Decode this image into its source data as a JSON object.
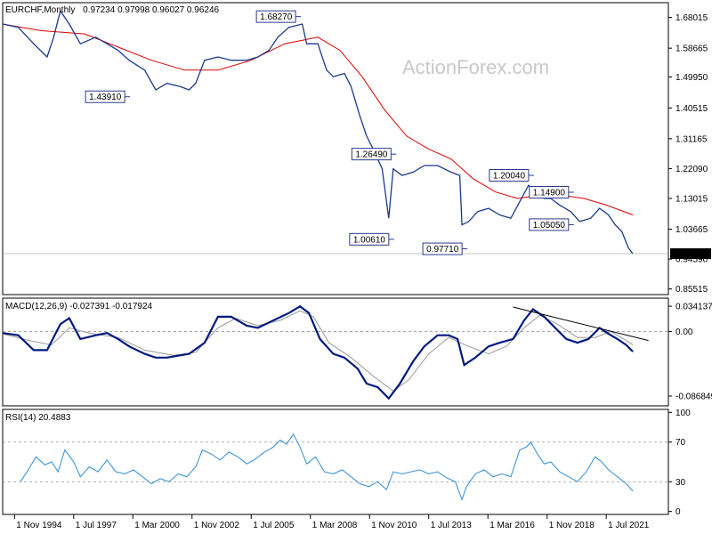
{
  "chart_data": {
    "type": "line",
    "title": "EURCHF,Monthly",
    "ohlc": "0.97234 0.97998 0.96027 0.96246",
    "watermark": "ActionForex.com",
    "colors": {
      "price": "#1a3a8a",
      "ma": "#dd0000",
      "macd": "#001a80",
      "signal": "#999999",
      "rsi": "#3f95d9",
      "label_border": "#2a3a8a",
      "current": "#000000"
    },
    "x_ticks": [
      "1 Nov 1994",
      "1 Jul 1997",
      "1 Mar 2000",
      "1 Nov 2002",
      "1 Jul 2005",
      "1 Mar 2008",
      "1 Nov 2010",
      "1 Jul 2013",
      "1 Mar 2016",
      "1 Nov 2018",
      "1 Jul 2021"
    ],
    "price_panel": {
      "y_ticks": [
        "1.68015",
        "1.58665",
        "1.49950",
        "1.40515",
        "1.31165",
        "1.22090",
        "1.13015",
        "1.03665",
        "0.94590",
        "0.85515"
      ],
      "ylim": [
        0.838,
        1.725
      ],
      "current": "0.96246",
      "price": [
        {
          "x": 1994.3,
          "y": 1.66
        },
        {
          "x": 1995.0,
          "y": 1.65
        },
        {
          "x": 1995.7,
          "y": 1.6
        },
        {
          "x": 1996.3,
          "y": 1.56
        },
        {
          "x": 1996.6,
          "y": 1.62
        },
        {
          "x": 1996.9,
          "y": 1.7
        },
        {
          "x": 1997.3,
          "y": 1.66
        },
        {
          "x": 1997.8,
          "y": 1.6
        },
        {
          "x": 1998.5,
          "y": 1.62
        },
        {
          "x": 1999.0,
          "y": 1.6
        },
        {
          "x": 1999.5,
          "y": 1.58
        },
        {
          "x": 2000.0,
          "y": 1.55
        },
        {
          "x": 2000.7,
          "y": 1.52
        },
        {
          "x": 2001.2,
          "y": 1.46
        },
        {
          "x": 2001.7,
          "y": 1.48
        },
        {
          "x": 2002.3,
          "y": 1.47
        },
        {
          "x": 2002.7,
          "y": 1.46
        },
        {
          "x": 2003.0,
          "y": 1.48
        },
        {
          "x": 2003.4,
          "y": 1.55
        },
        {
          "x": 2004.0,
          "y": 1.56
        },
        {
          "x": 2004.6,
          "y": 1.55
        },
        {
          "x": 2005.3,
          "y": 1.55
        },
        {
          "x": 2005.8,
          "y": 1.56
        },
        {
          "x": 2006.3,
          "y": 1.58
        },
        {
          "x": 2006.7,
          "y": 1.62
        },
        {
          "x": 2007.2,
          "y": 1.65
        },
        {
          "x": 2007.8,
          "y": 1.66
        },
        {
          "x": 2008.0,
          "y": 1.6
        },
        {
          "x": 2008.5,
          "y": 1.6
        },
        {
          "x": 2008.9,
          "y": 1.52
        },
        {
          "x": 2009.2,
          "y": 1.5
        },
        {
          "x": 2009.7,
          "y": 1.51
        },
        {
          "x": 2010.0,
          "y": 1.47
        },
        {
          "x": 2010.4,
          "y": 1.38
        },
        {
          "x": 2010.7,
          "y": 1.32
        },
        {
          "x": 2011.0,
          "y": 1.28
        },
        {
          "x": 2011.4,
          "y": 1.22
        },
        {
          "x": 2011.7,
          "y": 1.07
        },
        {
          "x": 2011.9,
          "y": 1.22
        },
        {
          "x": 2012.3,
          "y": 1.2
        },
        {
          "x": 2012.8,
          "y": 1.21
        },
        {
          "x": 2013.3,
          "y": 1.23
        },
        {
          "x": 2013.9,
          "y": 1.23
        },
        {
          "x": 2014.5,
          "y": 1.21
        },
        {
          "x": 2014.9,
          "y": 1.2
        },
        {
          "x": 2015.0,
          "y": 1.05
        },
        {
          "x": 2015.3,
          "y": 1.06
        },
        {
          "x": 2015.7,
          "y": 1.09
        },
        {
          "x": 2016.2,
          "y": 1.1
        },
        {
          "x": 2016.7,
          "y": 1.08
        },
        {
          "x": 2017.2,
          "y": 1.07
        },
        {
          "x": 2017.6,
          "y": 1.12
        },
        {
          "x": 2018.0,
          "y": 1.17
        },
        {
          "x": 2018.3,
          "y": 1.15
        },
        {
          "x": 2018.7,
          "y": 1.13
        },
        {
          "x": 2019.0,
          "y": 1.13
        },
        {
          "x": 2019.4,
          "y": 1.11
        },
        {
          "x": 2019.9,
          "y": 1.09
        },
        {
          "x": 2020.3,
          "y": 1.06
        },
        {
          "x": 2020.8,
          "y": 1.07
        },
        {
          "x": 2021.2,
          "y": 1.1
        },
        {
          "x": 2021.6,
          "y": 1.08
        },
        {
          "x": 2021.9,
          "y": 1.05
        },
        {
          "x": 2022.2,
          "y": 1.03
        },
        {
          "x": 2022.5,
          "y": 0.98
        },
        {
          "x": 2022.7,
          "y": 0.962
        }
      ],
      "ma": [
        {
          "x": 1994.3,
          "y": 1.66
        },
        {
          "x": 1996.0,
          "y": 1.64
        },
        {
          "x": 1998.0,
          "y": 1.63
        },
        {
          "x": 1999.5,
          "y": 1.59
        },
        {
          "x": 2001.0,
          "y": 1.55
        },
        {
          "x": 2002.5,
          "y": 1.52
        },
        {
          "x": 2004.0,
          "y": 1.52
        },
        {
          "x": 2005.5,
          "y": 1.55
        },
        {
          "x": 2007.0,
          "y": 1.6
        },
        {
          "x": 2008.5,
          "y": 1.62
        },
        {
          "x": 2009.5,
          "y": 1.58
        },
        {
          "x": 2010.5,
          "y": 1.5
        },
        {
          "x": 2011.5,
          "y": 1.4
        },
        {
          "x": 2012.5,
          "y": 1.32
        },
        {
          "x": 2013.5,
          "y": 1.28
        },
        {
          "x": 2014.5,
          "y": 1.25
        },
        {
          "x": 2015.5,
          "y": 1.19
        },
        {
          "x": 2016.5,
          "y": 1.15
        },
        {
          "x": 2017.5,
          "y": 1.13
        },
        {
          "x": 2018.5,
          "y": 1.14
        },
        {
          "x": 2019.5,
          "y": 1.14
        },
        {
          "x": 2020.5,
          "y": 1.13
        },
        {
          "x": 2021.5,
          "y": 1.11
        },
        {
          "x": 2022.7,
          "y": 1.08
        }
      ],
      "annotations": [
        {
          "text": "1.68270",
          "x": 2007.5,
          "y": 1.6827
        },
        {
          "text": "1.43910",
          "x": 1999.8,
          "y": 1.4391
        },
        {
          "text": "1.26490",
          "x": 2011.8,
          "y": 1.2649
        },
        {
          "text": "1.00610",
          "x": 2011.7,
          "y": 1.0061
        },
        {
          "text": "1.20040",
          "x": 2018.0,
          "y": 1.2004
        },
        {
          "text": "0.97710",
          "x": 2015.0,
          "y": 0.9771
        },
        {
          "text": "1.14900",
          "x": 2019.8,
          "y": 1.149
        },
        {
          "text": "1.05050",
          "x": 2019.8,
          "y": 1.0505
        }
      ]
    },
    "macd_panel": {
      "label": "MACD(12,26,9) -0.027391 -0.017924",
      "y_ticks": [
        "0.034137",
        "0.00",
        "-0.086849"
      ],
      "ylim": [
        -0.1,
        0.045
      ],
      "macd": [
        {
          "x": 1994.3,
          "y": -0.002
        },
        {
          "x": 1995.0,
          "y": -0.005
        },
        {
          "x": 1995.7,
          "y": -0.025
        },
        {
          "x": 1996.3,
          "y": -0.025
        },
        {
          "x": 1996.9,
          "y": 0.01
        },
        {
          "x": 1997.3,
          "y": 0.018
        },
        {
          "x": 1997.8,
          "y": -0.01
        },
        {
          "x": 1998.5,
          "y": -0.005
        },
        {
          "x": 1999.0,
          "y": -0.002
        },
        {
          "x": 1999.5,
          "y": -0.01
        },
        {
          "x": 2000.0,
          "y": -0.02
        },
        {
          "x": 2000.7,
          "y": -0.03
        },
        {
          "x": 2001.2,
          "y": -0.035
        },
        {
          "x": 2001.7,
          "y": -0.035
        },
        {
          "x": 2002.7,
          "y": -0.03
        },
        {
          "x": 2003.4,
          "y": -0.015
        },
        {
          "x": 2004.0,
          "y": 0.02
        },
        {
          "x": 2004.6,
          "y": 0.02
        },
        {
          "x": 2005.3,
          "y": 0.008
        },
        {
          "x": 2005.8,
          "y": 0.005
        },
        {
          "x": 2006.5,
          "y": 0.015
        },
        {
          "x": 2007.2,
          "y": 0.025
        },
        {
          "x": 2007.7,
          "y": 0.034
        },
        {
          "x": 2008.1,
          "y": 0.025
        },
        {
          "x": 2008.6,
          "y": -0.01
        },
        {
          "x": 2009.2,
          "y": -0.03
        },
        {
          "x": 2009.7,
          "y": -0.035
        },
        {
          "x": 2010.3,
          "y": -0.05
        },
        {
          "x": 2010.7,
          "y": -0.07
        },
        {
          "x": 2011.2,
          "y": -0.075
        },
        {
          "x": 2011.7,
          "y": -0.09
        },
        {
          "x": 2012.2,
          "y": -0.07
        },
        {
          "x": 2012.8,
          "y": -0.04
        },
        {
          "x": 2013.3,
          "y": -0.02
        },
        {
          "x": 2013.9,
          "y": -0.005
        },
        {
          "x": 2014.4,
          "y": -0.005
        },
        {
          "x": 2014.8,
          "y": -0.01
        },
        {
          "x": 2015.1,
          "y": -0.045
        },
        {
          "x": 2015.6,
          "y": -0.035
        },
        {
          "x": 2016.2,
          "y": -0.02
        },
        {
          "x": 2016.7,
          "y": -0.015
        },
        {
          "x": 2017.3,
          "y": -0.01
        },
        {
          "x": 2017.8,
          "y": 0.015
        },
        {
          "x": 2018.2,
          "y": 0.03
        },
        {
          "x": 2018.7,
          "y": 0.02
        },
        {
          "x": 2019.2,
          "y": 0.005
        },
        {
          "x": 2019.7,
          "y": -0.01
        },
        {
          "x": 2020.2,
          "y": -0.015
        },
        {
          "x": 2020.7,
          "y": -0.01
        },
        {
          "x": 2021.2,
          "y": 0.005
        },
        {
          "x": 2021.6,
          "y": -0.003
        },
        {
          "x": 2022.0,
          "y": -0.01
        },
        {
          "x": 2022.4,
          "y": -0.018
        },
        {
          "x": 2022.7,
          "y": -0.027
        }
      ],
      "signal": [
        {
          "x": 1994.3,
          "y": -0.003
        },
        {
          "x": 1995.5,
          "y": -0.012
        },
        {
          "x": 1996.5,
          "y": -0.018
        },
        {
          "x": 1997.3,
          "y": 0.005
        },
        {
          "x": 1998.2,
          "y": -0.002
        },
        {
          "x": 1999.5,
          "y": -0.008
        },
        {
          "x": 2000.7,
          "y": -0.025
        },
        {
          "x": 2002.0,
          "y": -0.032
        },
        {
          "x": 2003.0,
          "y": -0.028
        },
        {
          "x": 2004.0,
          "y": 0.005
        },
        {
          "x": 2004.8,
          "y": 0.018
        },
        {
          "x": 2005.8,
          "y": 0.008
        },
        {
          "x": 2006.8,
          "y": 0.015
        },
        {
          "x": 2007.7,
          "y": 0.028
        },
        {
          "x": 2008.3,
          "y": 0.02
        },
        {
          "x": 2009.0,
          "y": -0.015
        },
        {
          "x": 2010.0,
          "y": -0.035
        },
        {
          "x": 2011.0,
          "y": -0.06
        },
        {
          "x": 2011.9,
          "y": -0.08
        },
        {
          "x": 2012.6,
          "y": -0.065
        },
        {
          "x": 2013.5,
          "y": -0.03
        },
        {
          "x": 2014.4,
          "y": -0.008
        },
        {
          "x": 2015.3,
          "y": -0.02
        },
        {
          "x": 2016.2,
          "y": -0.03
        },
        {
          "x": 2017.0,
          "y": -0.02
        },
        {
          "x": 2017.8,
          "y": 0.005
        },
        {
          "x": 2018.5,
          "y": 0.022
        },
        {
          "x": 2019.3,
          "y": 0.01
        },
        {
          "x": 2020.2,
          "y": -0.008
        },
        {
          "x": 2021.0,
          "y": -0.008
        },
        {
          "x": 2021.7,
          "y": 0.0
        },
        {
          "x": 2022.3,
          "y": -0.01
        },
        {
          "x": 2022.7,
          "y": -0.018
        }
      ],
      "trendline": [
        {
          "x": 2017.3,
          "y": 0.033
        },
        {
          "x": 2023.4,
          "y": -0.012
        }
      ]
    },
    "rsi_panel": {
      "label": "RSI(14) 20.4883",
      "y_ticks": [
        "100",
        "70",
        "30",
        "0"
      ],
      "ylim": [
        -3,
        103
      ],
      "levels": [
        70,
        30
      ],
      "rsi": [
        {
          "x": 1995.1,
          "y": 30
        },
        {
          "x": 1995.4,
          "y": 40
        },
        {
          "x": 1995.8,
          "y": 55
        },
        {
          "x": 1996.2,
          "y": 47
        },
        {
          "x": 1996.5,
          "y": 50
        },
        {
          "x": 1996.8,
          "y": 40
        },
        {
          "x": 1997.1,
          "y": 62
        },
        {
          "x": 1997.5,
          "y": 50
        },
        {
          "x": 1997.8,
          "y": 35
        },
        {
          "x": 1998.2,
          "y": 45
        },
        {
          "x": 1998.6,
          "y": 40
        },
        {
          "x": 1999.0,
          "y": 52
        },
        {
          "x": 1999.4,
          "y": 40
        },
        {
          "x": 1999.8,
          "y": 38
        },
        {
          "x": 2000.2,
          "y": 42
        },
        {
          "x": 2000.6,
          "y": 35
        },
        {
          "x": 2001.0,
          "y": 28
        },
        {
          "x": 2001.4,
          "y": 33
        },
        {
          "x": 2001.8,
          "y": 30
        },
        {
          "x": 2002.2,
          "y": 38
        },
        {
          "x": 2002.6,
          "y": 35
        },
        {
          "x": 2003.0,
          "y": 45
        },
        {
          "x": 2003.3,
          "y": 62
        },
        {
          "x": 2003.7,
          "y": 58
        },
        {
          "x": 2004.1,
          "y": 52
        },
        {
          "x": 2004.5,
          "y": 60
        },
        {
          "x": 2004.9,
          "y": 55
        },
        {
          "x": 2005.3,
          "y": 48
        },
        {
          "x": 2005.7,
          "y": 53
        },
        {
          "x": 2006.1,
          "y": 60
        },
        {
          "x": 2006.5,
          "y": 65
        },
        {
          "x": 2006.8,
          "y": 72
        },
        {
          "x": 2007.1,
          "y": 68
        },
        {
          "x": 2007.4,
          "y": 78
        },
        {
          "x": 2007.7,
          "y": 65
        },
        {
          "x": 2008.0,
          "y": 48
        },
        {
          "x": 2008.4,
          "y": 55
        },
        {
          "x": 2008.8,
          "y": 40
        },
        {
          "x": 2009.2,
          "y": 38
        },
        {
          "x": 2009.6,
          "y": 42
        },
        {
          "x": 2010.0,
          "y": 35
        },
        {
          "x": 2010.4,
          "y": 28
        },
        {
          "x": 2010.8,
          "y": 25
        },
        {
          "x": 2011.2,
          "y": 30
        },
        {
          "x": 2011.6,
          "y": 22
        },
        {
          "x": 2011.9,
          "y": 40
        },
        {
          "x": 2012.3,
          "y": 38
        },
        {
          "x": 2012.7,
          "y": 40
        },
        {
          "x": 2013.1,
          "y": 42
        },
        {
          "x": 2013.5,
          "y": 38
        },
        {
          "x": 2013.9,
          "y": 40
        },
        {
          "x": 2014.3,
          "y": 34
        },
        {
          "x": 2014.7,
          "y": 30
        },
        {
          "x": 2015.0,
          "y": 12
        },
        {
          "x": 2015.2,
          "y": 25
        },
        {
          "x": 2015.6,
          "y": 38
        },
        {
          "x": 2016.0,
          "y": 42
        },
        {
          "x": 2016.4,
          "y": 35
        },
        {
          "x": 2016.8,
          "y": 38
        },
        {
          "x": 2017.2,
          "y": 35
        },
        {
          "x": 2017.6,
          "y": 62
        },
        {
          "x": 2017.9,
          "y": 65
        },
        {
          "x": 2018.1,
          "y": 70
        },
        {
          "x": 2018.4,
          "y": 58
        },
        {
          "x": 2018.7,
          "y": 48
        },
        {
          "x": 2019.0,
          "y": 50
        },
        {
          "x": 2019.4,
          "y": 40
        },
        {
          "x": 2019.8,
          "y": 35
        },
        {
          "x": 2020.2,
          "y": 30
        },
        {
          "x": 2020.6,
          "y": 40
        },
        {
          "x": 2021.0,
          "y": 55
        },
        {
          "x": 2021.3,
          "y": 50
        },
        {
          "x": 2021.6,
          "y": 42
        },
        {
          "x": 2022.0,
          "y": 35
        },
        {
          "x": 2022.4,
          "y": 28
        },
        {
          "x": 2022.7,
          "y": 20.5
        }
      ]
    }
  }
}
